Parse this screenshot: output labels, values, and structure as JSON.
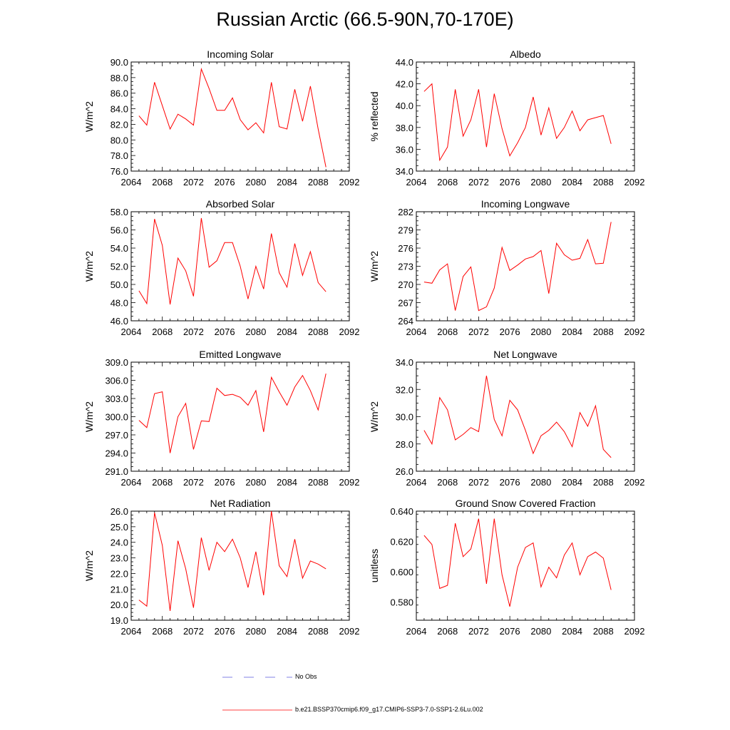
{
  "page": {
    "title": "Russian Arctic (66.5-90N,70-170E)"
  },
  "legend": {
    "no_obs": "No Obs",
    "model": "b.e21.BSSP370cmip6.f09_g17.CMIP6-SSP3-7.0-SSP1-2.6Lu.002",
    "no_obs_color": "#5a5adc",
    "model_color": "#ff0000"
  },
  "chart_data": [
    {
      "type": "line",
      "title": "Incoming Solar",
      "xlabel": "",
      "ylabel": "W/m^2",
      "xlim": [
        2064,
        2092
      ],
      "xticks": [
        2064,
        2068,
        2072,
        2076,
        2080,
        2084,
        2088,
        2092
      ],
      "ylim": [
        76.0,
        90.0
      ],
      "yticks": [
        "76.0",
        "78.0",
        "80.0",
        "82.0",
        "84.0",
        "86.0",
        "88.0",
        "90.0"
      ],
      "grid": false,
      "x": [
        2065,
        2066,
        2067,
        2068,
        2069,
        2070,
        2071,
        2072,
        2073,
        2074,
        2075,
        2076,
        2077,
        2078,
        2079,
        2080,
        2081,
        2082,
        2083,
        2084,
        2085,
        2086,
        2087,
        2088,
        2089
      ],
      "series": [
        {
          "color": "#ff0000",
          "values": [
            83.1,
            81.9,
            87.4,
            84.4,
            81.4,
            83.3,
            82.7,
            81.9,
            89.1,
            86.6,
            83.8,
            83.8,
            85.4,
            82.6,
            81.3,
            82.2,
            80.9,
            87.4,
            81.7,
            81.4,
            86.5,
            82.4,
            86.9,
            81.4,
            76.5
          ]
        }
      ]
    },
    {
      "type": "line",
      "title": "Albedo",
      "xlabel": "",
      "ylabel": "% reflected",
      "xlim": [
        2064,
        2092
      ],
      "xticks": [
        2064,
        2068,
        2072,
        2076,
        2080,
        2084,
        2088,
        2092
      ],
      "ylim": [
        34.0,
        44.0
      ],
      "yticks": [
        "34.0",
        "36.0",
        "38.0",
        "40.0",
        "42.0",
        "44.0"
      ],
      "grid": false,
      "x": [
        2065,
        2066,
        2067,
        2068,
        2069,
        2070,
        2071,
        2072,
        2073,
        2074,
        2075,
        2076,
        2077,
        2078,
        2079,
        2080,
        2081,
        2082,
        2083,
        2084,
        2085,
        2086,
        2087,
        2088,
        2089
      ],
      "series": [
        {
          "color": "#ff0000",
          "values": [
            41.3,
            42.0,
            35.0,
            36.2,
            41.5,
            37.2,
            38.7,
            41.5,
            36.2,
            41.1,
            37.9,
            35.4,
            36.6,
            38.0,
            40.8,
            37.3,
            39.8,
            37.0,
            38.0,
            39.5,
            37.7,
            38.7,
            38.9,
            39.1,
            36.5
          ]
        }
      ]
    },
    {
      "type": "line",
      "title": "Absorbed Solar",
      "xlabel": "",
      "ylabel": "W/m^2",
      "xlim": [
        2064,
        2092
      ],
      "xticks": [
        2064,
        2068,
        2072,
        2076,
        2080,
        2084,
        2088,
        2092
      ],
      "ylim": [
        46.0,
        58.0
      ],
      "yticks": [
        "46.0",
        "48.0",
        "50.0",
        "52.0",
        "54.0",
        "56.0",
        "58.0"
      ],
      "grid": false,
      "x": [
        2065,
        2066,
        2067,
        2068,
        2069,
        2070,
        2071,
        2072,
        2073,
        2074,
        2075,
        2076,
        2077,
        2078,
        2079,
        2080,
        2081,
        2082,
        2083,
        2084,
        2085,
        2086,
        2087,
        2088,
        2089
      ],
      "series": [
        {
          "color": "#ff0000",
          "values": [
            49.3,
            47.9,
            57.2,
            54.3,
            47.8,
            52.9,
            51.5,
            48.7,
            57.3,
            51.9,
            52.6,
            54.6,
            54.6,
            52.0,
            48.4,
            52.0,
            49.5,
            55.6,
            51.3,
            49.7,
            54.5,
            51.0,
            53.6,
            50.2,
            49.2
          ]
        }
      ]
    },
    {
      "type": "line",
      "title": "Incoming Longwave",
      "xlabel": "",
      "ylabel": "W/m^2",
      "xlim": [
        2064,
        2092
      ],
      "xticks": [
        2064,
        2068,
        2072,
        2076,
        2080,
        2084,
        2088,
        2092
      ],
      "ylim": [
        264,
        282
      ],
      "yticks": [
        "264",
        "267",
        "270",
        "273",
        "276",
        "279",
        "282"
      ],
      "grid": false,
      "x": [
        2065,
        2066,
        2067,
        2068,
        2069,
        2070,
        2071,
        2072,
        2073,
        2074,
        2075,
        2076,
        2077,
        2078,
        2079,
        2080,
        2081,
        2082,
        2083,
        2084,
        2085,
        2086,
        2087,
        2088,
        2089
      ],
      "series": [
        {
          "color": "#ff0000",
          "values": [
            270.4,
            270.2,
            272.4,
            273.4,
            265.7,
            271.3,
            272.9,
            265.7,
            266.3,
            269.4,
            276.1,
            272.3,
            273.2,
            274.2,
            274.6,
            275.6,
            268.5,
            276.8,
            274.9,
            274.0,
            274.3,
            277.4,
            273.4,
            273.5,
            280.3
          ]
        }
      ]
    },
    {
      "type": "line",
      "title": "Emitted Longwave",
      "xlabel": "",
      "ylabel": "W/m^2",
      "xlim": [
        2064,
        2092
      ],
      "xticks": [
        2064,
        2068,
        2072,
        2076,
        2080,
        2084,
        2088,
        2092
      ],
      "ylim": [
        291.0,
        309.0
      ],
      "yticks": [
        "291.0",
        "294.0",
        "297.0",
        "300.0",
        "303.0",
        "306.0",
        "309.0"
      ],
      "grid": false,
      "x": [
        2065,
        2066,
        2067,
        2068,
        2069,
        2070,
        2071,
        2072,
        2073,
        2074,
        2075,
        2076,
        2077,
        2078,
        2079,
        2080,
        2081,
        2082,
        2083,
        2084,
        2085,
        2086,
        2087,
        2088,
        2089
      ],
      "series": [
        {
          "color": "#ff0000",
          "values": [
            299.4,
            298.2,
            303.8,
            304.1,
            294.0,
            300.0,
            302.2,
            294.6,
            299.3,
            299.2,
            304.7,
            303.5,
            303.7,
            303.2,
            301.9,
            304.3,
            297.5,
            306.5,
            304.1,
            301.9,
            304.9,
            306.8,
            304.3,
            301.1,
            307.1
          ]
        }
      ]
    },
    {
      "type": "line",
      "title": "Net Longwave",
      "xlabel": "",
      "ylabel": "W/m^2",
      "xlim": [
        2064,
        2092
      ],
      "xticks": [
        2064,
        2068,
        2072,
        2076,
        2080,
        2084,
        2088,
        2092
      ],
      "ylim": [
        26.0,
        34.0
      ],
      "yticks": [
        "26.0",
        "28.0",
        "30.0",
        "32.0",
        "34.0"
      ],
      "grid": false,
      "x": [
        2065,
        2066,
        2067,
        2068,
        2069,
        2070,
        2071,
        2072,
        2073,
        2074,
        2075,
        2076,
        2077,
        2078,
        2079,
        2080,
        2081,
        2082,
        2083,
        2084,
        2085,
        2086,
        2087,
        2088,
        2089
      ],
      "series": [
        {
          "color": "#ff0000",
          "values": [
            29.0,
            28.0,
            31.4,
            30.5,
            28.3,
            28.7,
            29.2,
            28.9,
            33.0,
            29.8,
            28.6,
            31.2,
            30.5,
            29.0,
            27.3,
            28.6,
            29.0,
            29.6,
            28.9,
            27.8,
            30.3,
            29.3,
            30.8,
            27.6,
            27.0
          ]
        }
      ]
    },
    {
      "type": "line",
      "title": "Net Radiation",
      "xlabel": "",
      "ylabel": "W/m^2",
      "xlim": [
        2064,
        2092
      ],
      "xticks": [
        2064,
        2068,
        2072,
        2076,
        2080,
        2084,
        2088,
        2092
      ],
      "ylim": [
        19.0,
        26.0
      ],
      "yticks": [
        "19.0",
        "20.0",
        "21.0",
        "22.0",
        "23.0",
        "24.0",
        "25.0",
        "26.0"
      ],
      "grid": false,
      "x": [
        2065,
        2066,
        2067,
        2068,
        2069,
        2070,
        2071,
        2072,
        2073,
        2074,
        2075,
        2076,
        2077,
        2078,
        2079,
        2080,
        2081,
        2082,
        2083,
        2084,
        2085,
        2086,
        2087,
        2088,
        2089
      ],
      "series": [
        {
          "color": "#ff0000",
          "values": [
            20.3,
            19.9,
            25.9,
            23.8,
            19.6,
            24.1,
            22.3,
            19.8,
            24.3,
            22.2,
            24.0,
            23.4,
            24.2,
            23.0,
            21.1,
            23.4,
            20.6,
            26.0,
            22.5,
            21.8,
            24.2,
            21.7,
            22.8,
            22.6,
            22.3
          ]
        }
      ]
    },
    {
      "type": "line",
      "title": "Ground Snow Covered Fraction",
      "xlabel": "",
      "ylabel": "unitless",
      "xlim": [
        2064,
        2092
      ],
      "xticks": [
        2064,
        2068,
        2072,
        2076,
        2080,
        2084,
        2088,
        2092
      ],
      "ylim": [
        0.568,
        0.64
      ],
      "yticks": [
        "0.580",
        "0.600",
        "0.620",
        "0.640"
      ],
      "grid": false,
      "x": [
        2065,
        2066,
        2067,
        2068,
        2069,
        2070,
        2071,
        2072,
        2073,
        2074,
        2075,
        2076,
        2077,
        2078,
        2079,
        2080,
        2081,
        2082,
        2083,
        2084,
        2085,
        2086,
        2087,
        2088,
        2089
      ],
      "series": [
        {
          "color": "#ff0000",
          "values": [
            0.624,
            0.618,
            0.589,
            0.591,
            0.632,
            0.61,
            0.615,
            0.635,
            0.592,
            0.635,
            0.598,
            0.577,
            0.603,
            0.616,
            0.619,
            0.59,
            0.603,
            0.596,
            0.611,
            0.619,
            0.598,
            0.61,
            0.613,
            0.609,
            0.588
          ]
        }
      ]
    }
  ]
}
